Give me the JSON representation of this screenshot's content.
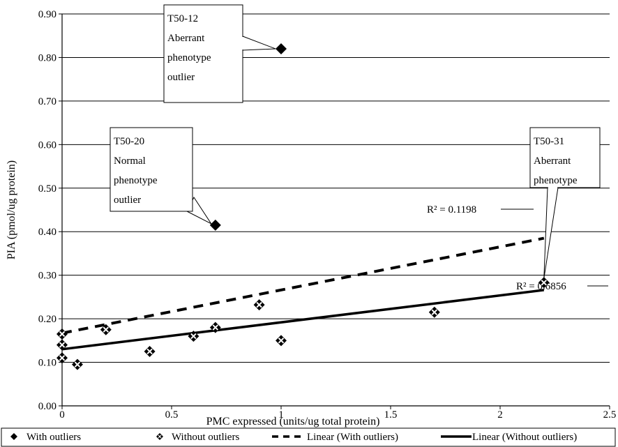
{
  "chart_data": {
    "type": "scatter",
    "title": "",
    "xlabel": "PMC expressed (units/ug total protein)",
    "ylabel": "PIA (pmol/ug protein)",
    "xlim": [
      0,
      2.5
    ],
    "ylim": [
      0,
      0.9
    ],
    "x_ticks": [
      "0",
      "0.5",
      "1",
      "1.5",
      "2",
      "2.5"
    ],
    "y_ticks": [
      "0.00",
      "0.10",
      "0.20",
      "0.30",
      "0.40",
      "0.50",
      "0.60",
      "0.70",
      "0.80",
      "0.90"
    ],
    "grid": "horizontal",
    "legend_position": "bottom",
    "series": [
      {
        "name": "With outliers",
        "marker": "diamond",
        "color": "#000000",
        "points": [
          [
            1.0,
            0.82
          ],
          [
            0.7,
            0.415
          ]
        ]
      },
      {
        "name": "Without outliers",
        "marker": "diamond-x",
        "color": "#000000",
        "points": [
          [
            0.0,
            0.165
          ],
          [
            0.0,
            0.14
          ],
          [
            0.0,
            0.11
          ],
          [
            0.07,
            0.095
          ],
          [
            0.2,
            0.175
          ],
          [
            0.4,
            0.125
          ],
          [
            0.6,
            0.16
          ],
          [
            0.7,
            0.18
          ],
          [
            0.9,
            0.232
          ],
          [
            1.0,
            0.15
          ],
          [
            1.7,
            0.215
          ],
          [
            2.2,
            0.283
          ]
        ]
      }
    ],
    "trendlines": [
      {
        "name": "Linear (With outliers)",
        "style": "dashed",
        "x": [
          0,
          2.2
        ],
        "y": [
          0.167,
          0.385
        ],
        "r2_label": "R² = 0.1198"
      },
      {
        "name": "Linear (Without outliers)",
        "style": "solid",
        "x": [
          0,
          2.2
        ],
        "y": [
          0.13,
          0.266
        ],
        "r2_label": "R² = 0.6856"
      }
    ],
    "annotations": [
      {
        "lines": [
          "T50-12",
          "Aberrant",
          "phenotype",
          "outlier"
        ],
        "target": [
          1.0,
          0.82
        ]
      },
      {
        "lines": [
          "T50-20",
          "Normal",
          "phenotype",
          "outlier"
        ],
        "target": [
          0.7,
          0.415
        ]
      },
      {
        "lines": [
          "T50-31",
          "Aberrant",
          "phenotype"
        ],
        "target": [
          2.2,
          0.283
        ]
      }
    ]
  }
}
